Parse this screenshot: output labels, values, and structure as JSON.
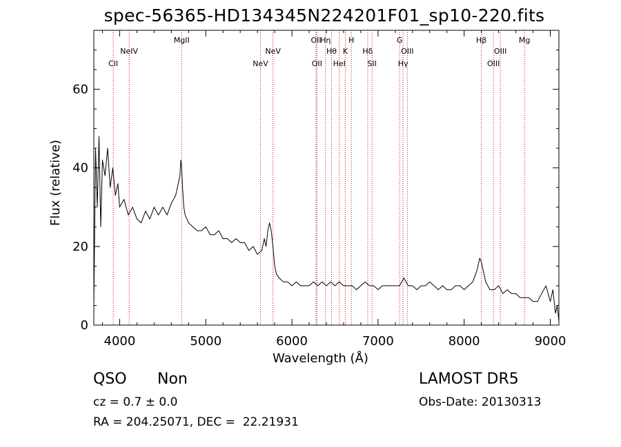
{
  "chart_data": {
    "type": "line",
    "title": "spec-56365-HD134345N224201F01_sp10-220.fits",
    "xlabel": "Wavelength (Å)",
    "ylabel": "Flux (relative)",
    "xlim": [
      3700,
      9100
    ],
    "ylim": [
      0,
      75
    ],
    "xticks": [
      4000,
      5000,
      6000,
      7000,
      8000,
      9000
    ],
    "yticks": [
      0,
      20,
      40,
      60
    ],
    "grid": false,
    "line_color": "#000000",
    "marker_line_color": "#cc0000",
    "spectrum": {
      "name": "",
      "x": [
        3700,
        3720,
        3740,
        3760,
        3780,
        3800,
        3830,
        3860,
        3890,
        3920,
        3950,
        3980,
        4000,
        4050,
        4100,
        4150,
        4200,
        4250,
        4300,
        4350,
        4400,
        4450,
        4500,
        4550,
        4600,
        4650,
        4680,
        4700,
        4710,
        4720,
        4730,
        4745,
        4760,
        4780,
        4800,
        4850,
        4900,
        4950,
        5000,
        5050,
        5100,
        5150,
        5200,
        5250,
        5300,
        5350,
        5400,
        5450,
        5500,
        5550,
        5600,
        5650,
        5680,
        5700,
        5720,
        5740,
        5760,
        5780,
        5800,
        5820,
        5850,
        5900,
        5950,
        6000,
        6050,
        6100,
        6150,
        6200,
        6250,
        6300,
        6350,
        6400,
        6450,
        6500,
        6550,
        6600,
        6650,
        6700,
        6750,
        6800,
        6850,
        6900,
        6950,
        7000,
        7050,
        7100,
        7150,
        7200,
        7250,
        7300,
        7350,
        7400,
        7450,
        7500,
        7550,
        7600,
        7650,
        7700,
        7750,
        7800,
        7850,
        7900,
        7950,
        8000,
        8050,
        8100,
        8150,
        8180,
        8200,
        8220,
        8250,
        8300,
        8350,
        8400,
        8450,
        8500,
        8550,
        8600,
        8650,
        8700,
        8750,
        8800,
        8850,
        8900,
        8950,
        9000,
        9030,
        9060,
        9080,
        9100
      ],
      "y": [
        5,
        45,
        30,
        48,
        25,
        42,
        38,
        45,
        35,
        40,
        33,
        36,
        30,
        32,
        28,
        30,
        27,
        26,
        29,
        27,
        30,
        28,
        30,
        28,
        31,
        33,
        36,
        38,
        42,
        40,
        35,
        30,
        28,
        27,
        26,
        25,
        24,
        24,
        25,
        23,
        23,
        24,
        22,
        22,
        21,
        22,
        21,
        21,
        19,
        20,
        18,
        19,
        22,
        20,
        24,
        26,
        24,
        20,
        15,
        13,
        12,
        11,
        11,
        10,
        11,
        10,
        10,
        10,
        11,
        10,
        11,
        10,
        11,
        10,
        11,
        10,
        10,
        10,
        9,
        10,
        11,
        10,
        10,
        9,
        10,
        10,
        10,
        10,
        10,
        12,
        10,
        10,
        9,
        10,
        10,
        11,
        10,
        9,
        10,
        9,
        9,
        10,
        10,
        9,
        10,
        11,
        14,
        17,
        16,
        14,
        11,
        9,
        9,
        10,
        8,
        9,
        8,
        8,
        7,
        7,
        7,
        6,
        6,
        8,
        10,
        6,
        9,
        3,
        5,
        1
      ]
    },
    "markers": [
      {
        "label": "CII",
        "x": 3925,
        "row": 2
      },
      {
        "label": "NeIV",
        "x": 4110,
        "row": 1
      },
      {
        "label": "MgII",
        "x": 4720,
        "row": 0
      },
      {
        "label": "NeV",
        "x": 5635,
        "row": 2
      },
      {
        "label": "NeV",
        "x": 5780,
        "row": 1
      },
      {
        "label": "OII",
        "x": 6280,
        "row": 0
      },
      {
        "label": "OII",
        "x": 6290,
        "row": 2
      },
      {
        "label": "Hη",
        "x": 6390,
        "row": 0
      },
      {
        "label": "Hθ",
        "x": 6460,
        "row": 1
      },
      {
        "label": "HeI",
        "x": 6550,
        "row": 2
      },
      {
        "label": "K",
        "x": 6620,
        "row": 1
      },
      {
        "label": "H",
        "x": 6690,
        "row": 0
      },
      {
        "label": "Hδ",
        "x": 6880,
        "row": 1
      },
      {
        "label": "SII",
        "x": 6930,
        "row": 2
      },
      {
        "label": "G",
        "x": 7250,
        "row": 0
      },
      {
        "label": "Hγ",
        "x": 7290,
        "row": 2
      },
      {
        "label": "OIII",
        "x": 7340,
        "row": 1
      },
      {
        "label": "Hβ",
        "x": 8200,
        "row": 0
      },
      {
        "label": "OIII",
        "x": 8340,
        "row": 2
      },
      {
        "label": "OIII",
        "x": 8420,
        "row": 1
      },
      {
        "label": "Mg",
        "x": 8700,
        "row": 0
      }
    ]
  },
  "info": {
    "class": "QSO",
    "subclass": "Non",
    "survey": "LAMOST DR5",
    "cz": "cz = 0.7 ± 0.0",
    "obs_date": "Obs-Date: 20130313",
    "radec": "RA = 204.25071, DEC =  22.21931"
  }
}
